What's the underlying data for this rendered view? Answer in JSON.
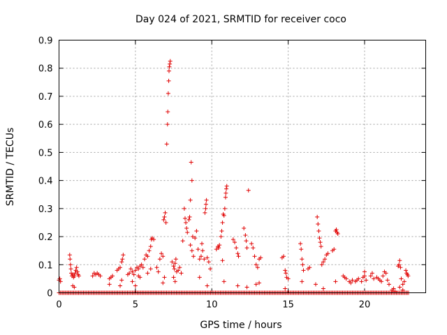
{
  "chart_data": {
    "type": "scatter",
    "title": "Day 024 of 2021, SRMTID for receiver coco",
    "xlabel": "GPS time / hours",
    "ylabel": "SRMTID / TECUs",
    "xlim": [
      0,
      24
    ],
    "ylim": [
      0,
      0.9
    ],
    "xticks": [
      0,
      5,
      10,
      15,
      20
    ],
    "yticks": [
      0,
      0.1,
      0.2,
      0.3,
      0.4,
      0.5,
      0.6,
      0.7,
      0.8,
      0.9
    ],
    "xtick_labels": [
      "0",
      "5",
      "10",
      "15",
      "20"
    ],
    "ytick_labels": [
      "0",
      "0.1",
      "0.2",
      "0.3",
      "0.4",
      "0.5",
      "0.6",
      "0.7",
      "0.8",
      "0.9"
    ],
    "grid": true,
    "marker": "+",
    "marker_color": "#e00000",
    "series": [
      {
        "name": "SRMTID",
        "points": [
          [
            0.0,
            0.045
          ],
          [
            0.05,
            0.05
          ],
          [
            0.1,
            0.04
          ],
          [
            0.7,
            0.135
          ],
          [
            0.72,
            0.12
          ],
          [
            0.75,
            0.1
          ],
          [
            0.78,
            0.085
          ],
          [
            0.8,
            0.07
          ],
          [
            0.85,
            0.06
          ],
          [
            0.9,
            0.065
          ],
          [
            0.95,
            0.055
          ],
          [
            1.0,
            0.06
          ],
          [
            1.05,
            0.07
          ],
          [
            1.1,
            0.08
          ],
          [
            1.15,
            0.09
          ],
          [
            1.2,
            0.075
          ],
          [
            1.25,
            0.065
          ],
          [
            1.3,
            0.06
          ],
          [
            0.9,
            0.025
          ],
          [
            1.0,
            0.02
          ],
          [
            2.2,
            0.06
          ],
          [
            2.3,
            0.07
          ],
          [
            2.4,
            0.065
          ],
          [
            2.5,
            0.07
          ],
          [
            2.6,
            0.065
          ],
          [
            2.7,
            0.06
          ],
          [
            3.3,
            0.05
          ],
          [
            3.4,
            0.055
          ],
          [
            3.5,
            0.06
          ],
          [
            3.3,
            0.03
          ],
          [
            3.8,
            0.08
          ],
          [
            3.9,
            0.085
          ],
          [
            4.0,
            0.09
          ],
          [
            4.1,
            0.11
          ],
          [
            4.15,
            0.12
          ],
          [
            4.2,
            0.135
          ],
          [
            4.1,
            0.045
          ],
          [
            4.0,
            0.025
          ],
          [
            4.5,
            0.065
          ],
          [
            4.6,
            0.07
          ],
          [
            4.7,
            0.085
          ],
          [
            4.8,
            0.075
          ],
          [
            4.9,
            0.065
          ],
          [
            5.0,
            0.08
          ],
          [
            5.1,
            0.09
          ],
          [
            5.2,
            0.085
          ],
          [
            5.3,
            0.095
          ],
          [
            5.4,
            0.1
          ],
          [
            5.5,
            0.09
          ],
          [
            5.2,
            0.06
          ],
          [
            5.3,
            0.055
          ],
          [
            4.8,
            0.04
          ],
          [
            5.0,
            0.025
          ],
          [
            5.6,
            0.12
          ],
          [
            5.7,
            0.135
          ],
          [
            5.8,
            0.13
          ],
          [
            5.9,
            0.15
          ],
          [
            6.0,
            0.165
          ],
          [
            6.05,
            0.19
          ],
          [
            6.1,
            0.195
          ],
          [
            6.2,
            0.19
          ],
          [
            6.0,
            0.085
          ],
          [
            5.8,
            0.07
          ],
          [
            6.4,
            0.09
          ],
          [
            6.5,
            0.075
          ],
          [
            6.6,
            0.12
          ],
          [
            6.7,
            0.14
          ],
          [
            6.8,
            0.13
          ],
          [
            6.85,
            0.26
          ],
          [
            6.9,
            0.27
          ],
          [
            6.95,
            0.285
          ],
          [
            7.0,
            0.25
          ],
          [
            6.9,
            0.055
          ],
          [
            6.8,
            0.035
          ],
          [
            7.05,
            0.53
          ],
          [
            7.1,
            0.6
          ],
          [
            7.12,
            0.645
          ],
          [
            7.15,
            0.71
          ],
          [
            7.18,
            0.755
          ],
          [
            7.2,
            0.79
          ],
          [
            7.22,
            0.805
          ],
          [
            7.25,
            0.815
          ],
          [
            7.28,
            0.825
          ],
          [
            7.4,
            0.11
          ],
          [
            7.5,
            0.095
          ],
          [
            7.55,
            0.085
          ],
          [
            7.6,
            0.105
          ],
          [
            7.65,
            0.12
          ],
          [
            7.7,
            0.075
          ],
          [
            7.8,
            0.08
          ],
          [
            7.9,
            0.09
          ],
          [
            8.0,
            0.07
          ],
          [
            7.5,
            0.055
          ],
          [
            7.6,
            0.04
          ],
          [
            8.1,
            0.185
          ],
          [
            8.2,
            0.3
          ],
          [
            8.25,
            0.265
          ],
          [
            8.3,
            0.25
          ],
          [
            8.35,
            0.23
          ],
          [
            8.4,
            0.215
          ],
          [
            8.5,
            0.26
          ],
          [
            8.55,
            0.27
          ],
          [
            8.6,
            0.33
          ],
          [
            8.65,
            0.465
          ],
          [
            8.7,
            0.4
          ],
          [
            8.6,
            0.17
          ],
          [
            8.7,
            0.15
          ],
          [
            8.8,
            0.13
          ],
          [
            8.75,
            0.2
          ],
          [
            8.9,
            0.195
          ],
          [
            9.0,
            0.22
          ],
          [
            9.1,
            0.155
          ],
          [
            9.2,
            0.12
          ],
          [
            9.3,
            0.13
          ],
          [
            9.35,
            0.175
          ],
          [
            9.4,
            0.15
          ],
          [
            9.5,
            0.12
          ],
          [
            9.55,
            0.285
          ],
          [
            9.6,
            0.3
          ],
          [
            9.62,
            0.315
          ],
          [
            9.65,
            0.33
          ],
          [
            9.7,
            0.125
          ],
          [
            9.8,
            0.11
          ],
          [
            9.9,
            0.085
          ],
          [
            9.7,
            0.025
          ],
          [
            9.2,
            0.055
          ],
          [
            10.3,
            0.155
          ],
          [
            10.4,
            0.165
          ],
          [
            10.45,
            0.16
          ],
          [
            10.5,
            0.17
          ],
          [
            10.6,
            0.2
          ],
          [
            10.65,
            0.22
          ],
          [
            10.7,
            0.25
          ],
          [
            10.75,
            0.28
          ],
          [
            10.8,
            0.275
          ],
          [
            10.85,
            0.3
          ],
          [
            10.9,
            0.34
          ],
          [
            10.92,
            0.355
          ],
          [
            10.95,
            0.37
          ],
          [
            10.98,
            0.38
          ],
          [
            10.7,
            0.115
          ],
          [
            10.8,
            0.04
          ],
          [
            11.4,
            0.19
          ],
          [
            11.5,
            0.18
          ],
          [
            11.6,
            0.16
          ],
          [
            11.7,
            0.14
          ],
          [
            11.75,
            0.13
          ],
          [
            11.7,
            0.025
          ],
          [
            12.1,
            0.23
          ],
          [
            12.2,
            0.205
          ],
          [
            12.25,
            0.185
          ],
          [
            12.3,
            0.16
          ],
          [
            12.4,
            0.365
          ],
          [
            12.3,
            0.02
          ],
          [
            12.6,
            0.175
          ],
          [
            12.7,
            0.16
          ],
          [
            12.8,
            0.13
          ],
          [
            12.9,
            0.1
          ],
          [
            13.0,
            0.09
          ],
          [
            13.1,
            0.12
          ],
          [
            13.2,
            0.125
          ],
          [
            12.9,
            0.03
          ],
          [
            13.1,
            0.035
          ],
          [
            14.6,
            0.125
          ],
          [
            14.7,
            0.13
          ],
          [
            14.8,
            0.08
          ],
          [
            14.85,
            0.07
          ],
          [
            14.9,
            0.055
          ],
          [
            15.0,
            0.05
          ],
          [
            14.8,
            0.015
          ],
          [
            15.8,
            0.175
          ],
          [
            15.85,
            0.155
          ],
          [
            15.9,
            0.12
          ],
          [
            15.95,
            0.1
          ],
          [
            16.0,
            0.08
          ],
          [
            15.9,
            0.04
          ],
          [
            16.3,
            0.085
          ],
          [
            16.4,
            0.09
          ],
          [
            16.9,
            0.27
          ],
          [
            16.95,
            0.245
          ],
          [
            17.0,
            0.22
          ],
          [
            17.05,
            0.195
          ],
          [
            17.1,
            0.18
          ],
          [
            17.15,
            0.165
          ],
          [
            17.2,
            0.1
          ],
          [
            17.3,
            0.11
          ],
          [
            17.4,
            0.12
          ],
          [
            17.5,
            0.135
          ],
          [
            17.6,
            0.14
          ],
          [
            17.3,
            0.015
          ],
          [
            16.8,
            0.03
          ],
          [
            17.9,
            0.15
          ],
          [
            18.0,
            0.155
          ],
          [
            18.1,
            0.22
          ],
          [
            18.15,
            0.225
          ],
          [
            18.2,
            0.215
          ],
          [
            18.25,
            0.21
          ],
          [
            18.1,
            0.04
          ],
          [
            18.6,
            0.06
          ],
          [
            18.7,
            0.055
          ],
          [
            18.8,
            0.05
          ],
          [
            19.0,
            0.04
          ],
          [
            19.1,
            0.035
          ],
          [
            19.2,
            0.045
          ],
          [
            19.4,
            0.04
          ],
          [
            19.5,
            0.045
          ],
          [
            19.6,
            0.05
          ],
          [
            19.8,
            0.04
          ],
          [
            19.9,
            0.055
          ],
          [
            20.0,
            0.06
          ],
          [
            20.1,
            0.045
          ],
          [
            20.0,
            0.075
          ],
          [
            20.4,
            0.06
          ],
          [
            20.5,
            0.07
          ],
          [
            20.6,
            0.05
          ],
          [
            20.8,
            0.055
          ],
          [
            20.9,
            0.05
          ],
          [
            21.0,
            0.045
          ],
          [
            21.1,
            0.04
          ],
          [
            21.2,
            0.06
          ],
          [
            21.3,
            0.075
          ],
          [
            21.4,
            0.07
          ],
          [
            21.5,
            0.045
          ],
          [
            21.6,
            0.03
          ],
          [
            21.8,
            0.01
          ],
          [
            21.9,
            0.015
          ],
          [
            22.0,
            0.005
          ],
          [
            22.2,
            0.095
          ],
          [
            22.25,
            0.1
          ],
          [
            22.3,
            0.115
          ],
          [
            22.35,
            0.09
          ],
          [
            22.4,
            0.05
          ],
          [
            22.5,
            0.03
          ],
          [
            22.6,
            0.04
          ],
          [
            22.7,
            0.08
          ],
          [
            22.75,
            0.07
          ],
          [
            22.8,
            0.065
          ],
          [
            22.85,
            0.06
          ],
          [
            22.3,
            0.02
          ],
          [
            22.5,
            0.01
          ]
        ]
      }
    ]
  }
}
